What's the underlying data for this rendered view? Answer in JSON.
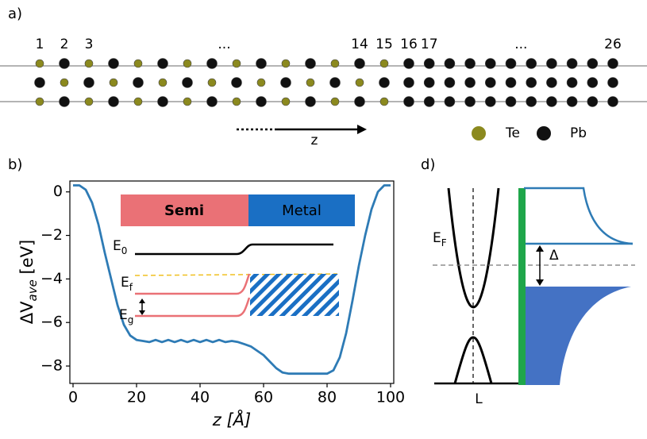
{
  "panel_a": {
    "label": "a)",
    "site_labels": [
      "1",
      "2",
      "3",
      "...",
      "14",
      "15",
      "16",
      "17",
      "...",
      "26"
    ],
    "direction": "z",
    "legend": [
      {
        "name": "Te",
        "color": "#8b891e"
      },
      {
        "name": "Pb",
        "color": "#111111"
      }
    ]
  },
  "chart_data": {
    "type": "line",
    "panel_label": "b)",
    "x_label": "z [Å]",
    "y_label": {
      "main": "ΔV",
      "sub": "ave",
      "unit": " [eV]"
    },
    "x": [
      0,
      2,
      4,
      6,
      8,
      10,
      12,
      14,
      16,
      18,
      20,
      22,
      24,
      26,
      28,
      30,
      32,
      34,
      36,
      38,
      40,
      42,
      44,
      46,
      48,
      50,
      52,
      54,
      56,
      58,
      60,
      62,
      64,
      66,
      68,
      70,
      72,
      74,
      76,
      78,
      80,
      82,
      84,
      86,
      88,
      90,
      92,
      94,
      96,
      98,
      100
    ],
    "series": [
      {
        "name": "ΔV_ave",
        "color": "#2e7bb5",
        "values": [
          0.3,
          0.3,
          0.1,
          -0.5,
          -1.5,
          -2.8,
          -4.0,
          -5.2,
          -6.1,
          -6.6,
          -6.8,
          -6.85,
          -6.9,
          -6.8,
          -6.9,
          -6.8,
          -6.9,
          -6.8,
          -6.9,
          -6.8,
          -6.9,
          -6.8,
          -6.9,
          -6.8,
          -6.9,
          -6.85,
          -6.9,
          -7.0,
          -7.1,
          -7.3,
          -7.5,
          -7.8,
          -8.1,
          -8.3,
          -8.35,
          -8.35,
          -8.35,
          -8.35,
          -8.35,
          -8.35,
          -8.35,
          -8.2,
          -7.6,
          -6.5,
          -5.0,
          -3.4,
          -2.0,
          -0.8,
          0.0,
          0.3,
          0.3
        ]
      }
    ],
    "xlim": [
      -1,
      101
    ],
    "ylim": [
      -8.8,
      0.5
    ],
    "xticks": [
      0,
      20,
      40,
      60,
      80,
      100
    ],
    "yticks": [
      0,
      {
        "value": -2,
        "label": "−2"
      },
      {
        "value": -4,
        "label": "−4"
      },
      {
        "value": -6,
        "label": "−6"
      },
      {
        "value": -8,
        "label": "−8"
      }
    ],
    "inset": {
      "regions": [
        "Semi",
        "Metal"
      ],
      "E0": {
        "base": "E",
        "sub": "0"
      },
      "Ef": {
        "base": "E",
        "sub": "f"
      },
      "Eg": {
        "base": "E",
        "sub": "g"
      }
    }
  },
  "panel_d": {
    "label": "d)",
    "fermi": {
      "base": "E",
      "sub": "F"
    },
    "gap": "Δ",
    "k_point": "L"
  }
}
